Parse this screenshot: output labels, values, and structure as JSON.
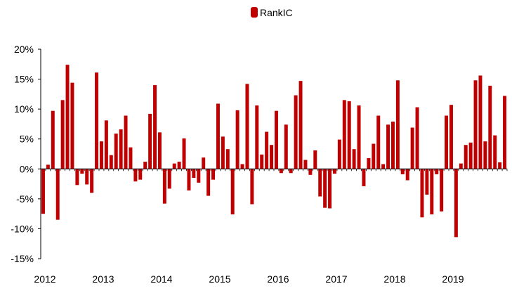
{
  "colors": {
    "bar": "#c00000",
    "axis": "#000000",
    "background": "#ffffff"
  },
  "chart_data": {
    "type": "bar",
    "legend": {
      "entries": [
        "RankIC"
      ],
      "position": "top-center",
      "marker": "rounded-square"
    },
    "grid": false,
    "ylim": [
      -15,
      20
    ],
    "yticks": [
      -15,
      -10,
      -5,
      0,
      5,
      10,
      15,
      20
    ],
    "ytick_labels": [
      "-15%",
      "-10%",
      "-5%",
      "0%",
      "5%",
      "10%",
      "15%",
      "20%"
    ],
    "xticks": [
      "2012",
      "2013",
      "2014",
      "2015",
      "2016",
      "2017",
      "2018",
      "2019"
    ],
    "x_start": "2012-01",
    "frequency": "monthly",
    "series": [
      {
        "name": "RankIC",
        "values": [
          -7.5,
          0.7,
          9.7,
          -8.5,
          11.5,
          17.4,
          14.4,
          -2.7,
          -0.8,
          -2.6,
          -4.0,
          16.1,
          4.6,
          8.1,
          2.3,
          5.9,
          6.6,
          8.9,
          3.6,
          -2.1,
          -1.8,
          1.2,
          9.2,
          14.0,
          6.1,
          -5.8,
          -3.3,
          0.9,
          1.2,
          5.1,
          -3.6,
          -1.5,
          -2.3,
          1.9,
          -4.5,
          -1.8,
          10.9,
          5.4,
          3.3,
          -7.6,
          9.8,
          0.8,
          14.2,
          -5.9,
          10.6,
          2.4,
          6.2,
          4.0,
          9.7,
          -0.7,
          7.4,
          -0.7,
          12.3,
          14.7,
          1.5,
          -1.0,
          3.1,
          -4.6,
          -6.5,
          -6.6,
          -0.8,
          4.9,
          11.5,
          11.3,
          3.3,
          10.6,
          -2.9,
          1.8,
          4.2,
          8.9,
          0.8,
          7.4,
          7.9,
          14.8,
          -0.9,
          -1.9,
          6.9,
          10.3,
          -8.1,
          -4.3,
          -7.6,
          -0.9,
          -7.1,
          8.9,
          10.7,
          -11.4,
          0.9,
          4.0,
          4.4,
          14.8,
          15.6,
          4.6,
          13.9,
          5.6,
          1.1,
          12.2
        ]
      }
    ]
  }
}
